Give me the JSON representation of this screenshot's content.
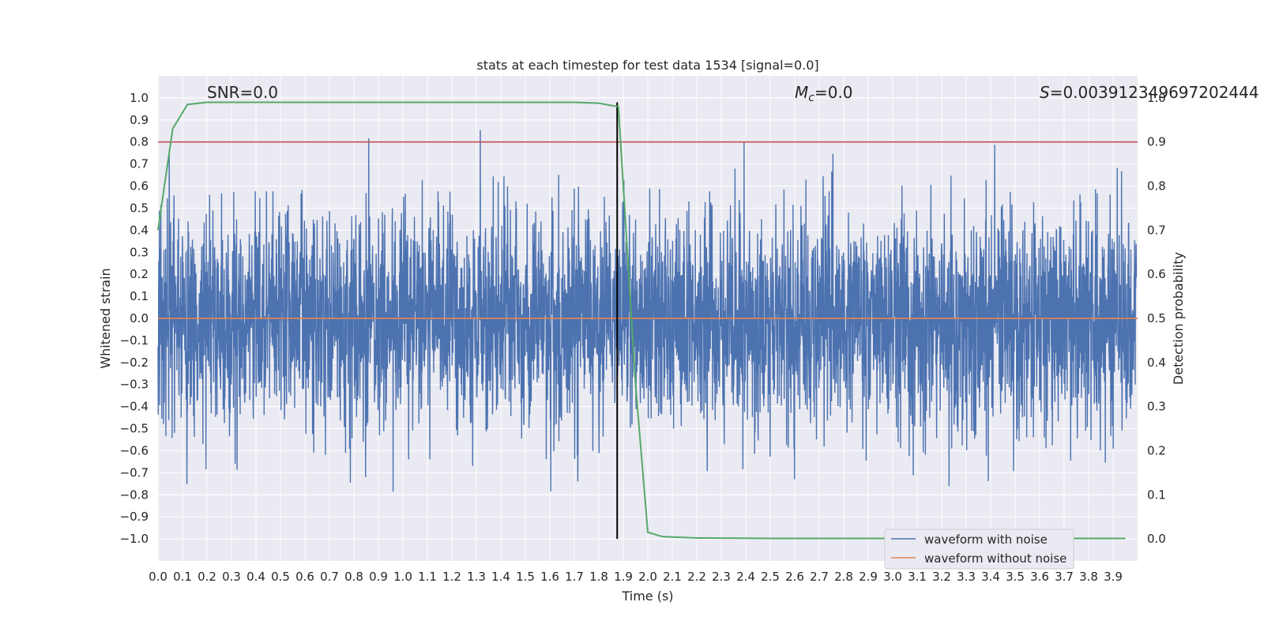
{
  "chart_data": {
    "type": "line",
    "title": "stats at each timestep for test data 1534 [signal=0.0]",
    "xlabel": "Time (s)",
    "ylabel": "Whitened strain",
    "y2label": "Detection probability",
    "xlim": [
      0.0,
      4.0
    ],
    "ylim": [
      -1.1,
      1.1
    ],
    "y2lim": [
      -0.05,
      1.05
    ],
    "x_ticks": [
      "0.0",
      "0.1",
      "0.2",
      "0.3",
      "0.4",
      "0.5",
      "0.6",
      "0.7",
      "0.8",
      "0.9",
      "1.0",
      "1.1",
      "1.2",
      "1.3",
      "1.4",
      "1.5",
      "1.6",
      "1.7",
      "1.8",
      "1.9",
      "2.0",
      "2.1",
      "2.2",
      "2.3",
      "2.4",
      "2.5",
      "2.6",
      "2.7",
      "2.8",
      "2.9",
      "3.0",
      "3.1",
      "3.2",
      "3.3",
      "3.4",
      "3.5",
      "3.6",
      "3.7",
      "3.8",
      "3.9"
    ],
    "y_ticks": [
      "1.0",
      "0.9",
      "0.8",
      "0.7",
      "0.6",
      "0.5",
      "0.4",
      "0.3",
      "0.2",
      "0.1",
      "0.0",
      "−0.1",
      "−0.2",
      "−0.3",
      "−0.4",
      "−0.5",
      "−0.6",
      "−0.7",
      "−0.8",
      "−0.9",
      "−1.0"
    ],
    "y2_ticks": [
      "1.0",
      "0.9",
      "0.8",
      "0.7",
      "0.6",
      "0.5",
      "0.4",
      "0.3",
      "0.2",
      "0.1",
      "0.0"
    ],
    "annotations": {
      "snr": "SNR=0.0",
      "mc_symbol": "M",
      "mc_sub": "c",
      "mc_value": "=0.0",
      "s_symbol": "S",
      "s_value": "=0.003912349697202444"
    },
    "series": [
      {
        "name": "waveform with noise",
        "color": "#4c72b0",
        "note": "dense whitened noise, amplitude roughly within [-1.0, 1.0]"
      },
      {
        "name": "waveform without noise",
        "color": "#dd8452",
        "values_constant": 0.0
      }
    ],
    "detection_probability": {
      "color": "#55a868",
      "x": [
        0.0,
        0.06,
        0.12,
        0.2,
        0.3,
        0.5,
        1.0,
        1.5,
        1.7,
        1.8,
        1.88,
        1.9,
        1.95,
        2.0,
        2.06,
        2.2,
        2.5,
        3.0,
        3.5,
        3.95
      ],
      "y": [
        0.7,
        0.93,
        0.985,
        0.99,
        0.99,
        0.99,
        0.99,
        0.99,
        0.99,
        0.988,
        0.98,
        0.8,
        0.35,
        0.015,
        0.005,
        0.002,
        0.001,
        0.001,
        0.001,
        0.001
      ]
    },
    "threshold_line": {
      "value": 0.9,
      "color": "#c44e52"
    },
    "vertical_marker": {
      "x": 1.875,
      "color": "#000000"
    },
    "legend": {
      "placement": "lower-right",
      "entries": [
        "waveform with noise",
        "waveform without noise"
      ]
    }
  }
}
